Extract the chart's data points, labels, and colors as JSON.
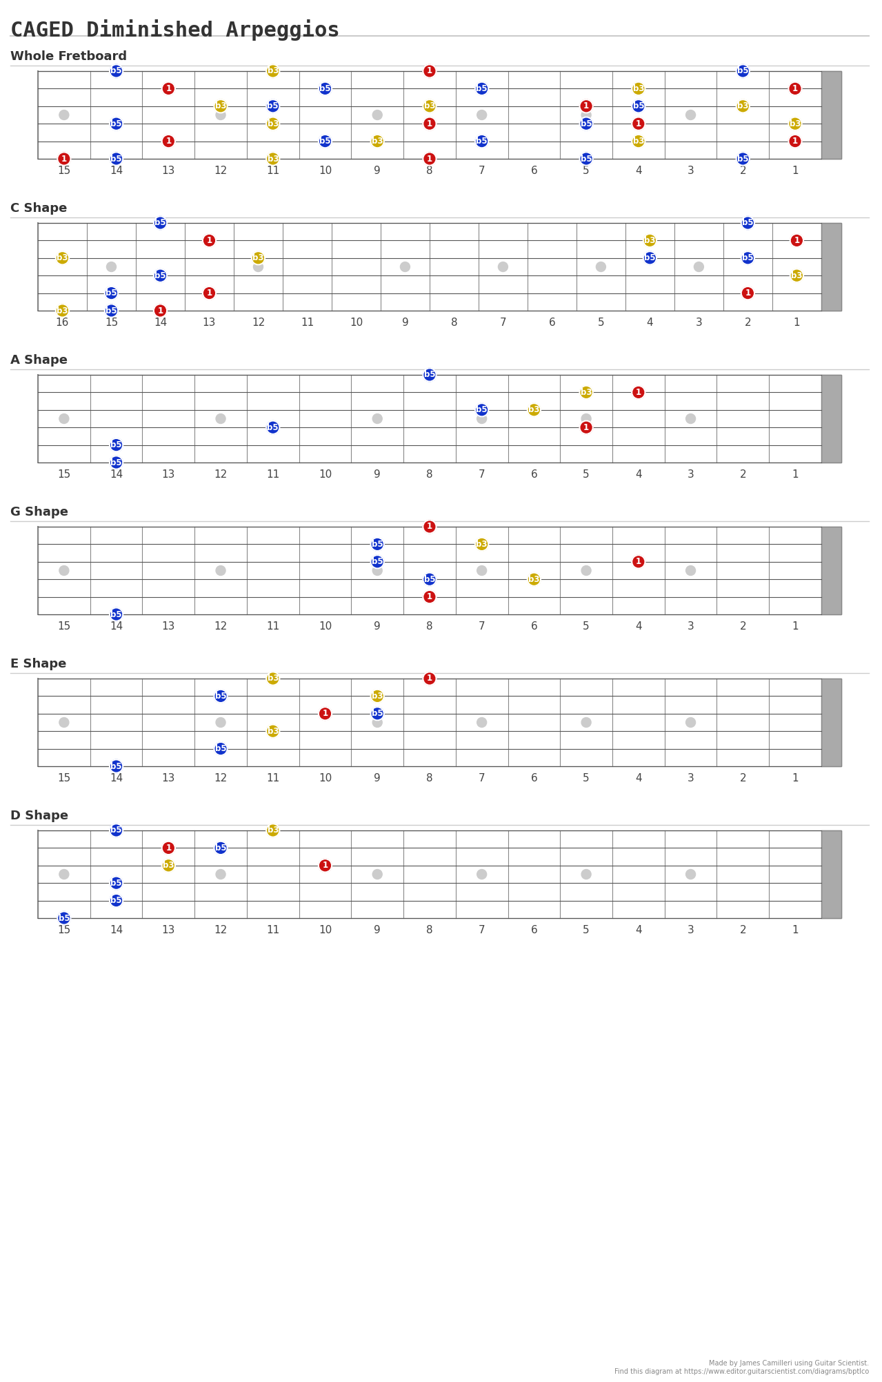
{
  "title": "CAGED Diminished Arpeggios",
  "title_font": "monospace",
  "title_fontsize": 22,
  "bg_color": "#ffffff",
  "section_label_fontsize": 13,
  "section_label_font": "sans-serif",
  "fret_label_fontsize": 11,
  "note_fontsize": 8.5,
  "colors": {
    "1": "#cc1111",
    "b3": "#ccaa00",
    "b5": "#1133cc",
    "b7": "#888888"
  },
  "note_text_color": "#ffffff",
  "string_count": 6,
  "diagrams": [
    {
      "label": "Whole Fretboard",
      "fret_min": 1,
      "fret_max": 15,
      "show_nut": false,
      "notes": [
        {
          "string": 1,
          "fret": 14,
          "interval": "b5"
        },
        {
          "string": 1,
          "fret": 11,
          "interval": "b3"
        },
        {
          "string": 1,
          "fret": 8,
          "interval": "1"
        },
        {
          "string": 1,
          "fret": 2,
          "interval": "b5"
        },
        {
          "string": 2,
          "fret": 13,
          "interval": "1"
        },
        {
          "string": 2,
          "fret": 10,
          "interval": "b5"
        },
        {
          "string": 2,
          "fret": 7,
          "interval": "b5"
        },
        {
          "string": 2,
          "fret": 4,
          "interval": "b3"
        },
        {
          "string": 2,
          "fret": 1,
          "interval": "1"
        },
        {
          "string": 3,
          "fret": 12,
          "interval": "b3"
        },
        {
          "string": 3,
          "fret": 11,
          "interval": "b5"
        },
        {
          "string": 3,
          "fret": 8,
          "interval": "b3"
        },
        {
          "string": 3,
          "fret": 5,
          "interval": "1"
        },
        {
          "string": 3,
          "fret": 4,
          "interval": "b5"
        },
        {
          "string": 3,
          "fret": 2,
          "interval": "b3"
        },
        {
          "string": 4,
          "fret": 14,
          "interval": "b5"
        },
        {
          "string": 4,
          "fret": 11,
          "interval": "b3"
        },
        {
          "string": 4,
          "fret": 8,
          "interval": "1"
        },
        {
          "string": 4,
          "fret": 5,
          "interval": "b5"
        },
        {
          "string": 4,
          "fret": 4,
          "interval": "1"
        },
        {
          "string": 4,
          "fret": 1,
          "interval": "b3"
        },
        {
          "string": 5,
          "fret": 13,
          "interval": "1"
        },
        {
          "string": 5,
          "fret": 10,
          "interval": "b5"
        },
        {
          "string": 5,
          "fret": 9,
          "interval": "b3"
        },
        {
          "string": 5,
          "fret": 7,
          "interval": "b5"
        },
        {
          "string": 5,
          "fret": 4,
          "interval": "b3"
        },
        {
          "string": 5,
          "fret": 1,
          "interval": "1"
        },
        {
          "string": 6,
          "fret": 15,
          "interval": "1"
        },
        {
          "string": 6,
          "fret": 14,
          "interval": "b5"
        },
        {
          "string": 6,
          "fret": 11,
          "interval": "b3"
        },
        {
          "string": 6,
          "fret": 8,
          "interval": "1"
        },
        {
          "string": 6,
          "fret": 5,
          "interval": "b5"
        },
        {
          "string": 6,
          "fret": 2,
          "interval": "b5"
        }
      ]
    },
    {
      "label": "C Shape",
      "fret_min": 1,
      "fret_max": 16,
      "show_nut": false,
      "notes": [
        {
          "string": 1,
          "fret": 14,
          "interval": "b5"
        },
        {
          "string": 1,
          "fret": 2,
          "interval": "b5"
        },
        {
          "string": 2,
          "fret": 13,
          "interval": "1"
        },
        {
          "string": 2,
          "fret": 4,
          "interval": "b3"
        },
        {
          "string": 2,
          "fret": 1,
          "interval": "1"
        },
        {
          "string": 3,
          "fret": 16,
          "interval": "b3"
        },
        {
          "string": 3,
          "fret": 12,
          "interval": "b3"
        },
        {
          "string": 3,
          "fret": 4,
          "interval": "b5"
        },
        {
          "string": 3,
          "fret": 2,
          "interval": "b5"
        },
        {
          "string": 4,
          "fret": 14,
          "interval": "b5"
        },
        {
          "string": 4,
          "fret": 1,
          "interval": "b3"
        },
        {
          "string": 5,
          "fret": 15,
          "interval": "b5"
        },
        {
          "string": 5,
          "fret": 13,
          "interval": "1"
        },
        {
          "string": 5,
          "fret": 2,
          "interval": "1"
        },
        {
          "string": 6,
          "fret": 16,
          "interval": "b3"
        },
        {
          "string": 6,
          "fret": 15,
          "interval": "b5"
        },
        {
          "string": 6,
          "fret": 14,
          "interval": "1"
        }
      ]
    },
    {
      "label": "A Shape",
      "fret_min": 1,
      "fret_max": 15,
      "show_nut": false,
      "notes": [
        {
          "string": 1,
          "fret": 8,
          "interval": "b5"
        },
        {
          "string": 2,
          "fret": 4,
          "interval": "1"
        },
        {
          "string": 2,
          "fret": 5,
          "interval": "b3"
        },
        {
          "string": 3,
          "fret": 6,
          "interval": "b3"
        },
        {
          "string": 3,
          "fret": 7,
          "interval": "b5"
        },
        {
          "string": 4,
          "fret": 11,
          "interval": "b5"
        },
        {
          "string": 4,
          "fret": 5,
          "interval": "1"
        },
        {
          "string": 5,
          "fret": 14,
          "interval": "b5"
        },
        {
          "string": 6,
          "fret": 14,
          "interval": "b5"
        }
      ]
    },
    {
      "label": "G Shape",
      "fret_min": 1,
      "fret_max": 15,
      "show_nut": false,
      "notes": [
        {
          "string": 1,
          "fret": 8,
          "interval": "1"
        },
        {
          "string": 2,
          "fret": 9,
          "interval": "b5"
        },
        {
          "string": 2,
          "fret": 7,
          "interval": "b3"
        },
        {
          "string": 3,
          "fret": 9,
          "interval": "b5"
        },
        {
          "string": 3,
          "fret": 4,
          "interval": "1"
        },
        {
          "string": 4,
          "fret": 8,
          "interval": "b5"
        },
        {
          "string": 4,
          "fret": 6,
          "interval": "b3"
        },
        {
          "string": 5,
          "fret": 8,
          "interval": "1"
        },
        {
          "string": 6,
          "fret": 14,
          "interval": "b5"
        }
      ]
    },
    {
      "label": "E Shape",
      "fret_min": 1,
      "fret_max": 15,
      "show_nut": false,
      "notes": [
        {
          "string": 1,
          "fret": 11,
          "interval": "b3"
        },
        {
          "string": 1,
          "fret": 8,
          "interval": "1"
        },
        {
          "string": 2,
          "fret": 12,
          "interval": "b5"
        },
        {
          "string": 2,
          "fret": 9,
          "interval": "b3"
        },
        {
          "string": 3,
          "fret": 10,
          "interval": "1"
        },
        {
          "string": 3,
          "fret": 9,
          "interval": "b5"
        },
        {
          "string": 4,
          "fret": 11,
          "interval": "b3"
        },
        {
          "string": 5,
          "fret": 12,
          "interval": "b5"
        },
        {
          "string": 6,
          "fret": 14,
          "interval": "b5"
        }
      ]
    },
    {
      "label": "D Shape",
      "fret_min": 1,
      "fret_max": 15,
      "show_nut": false,
      "notes": [
        {
          "string": 1,
          "fret": 14,
          "interval": "b5"
        },
        {
          "string": 1,
          "fret": 11,
          "interval": "b3"
        },
        {
          "string": 2,
          "fret": 13,
          "interval": "1"
        },
        {
          "string": 2,
          "fret": 12,
          "interval": "b5"
        },
        {
          "string": 3,
          "fret": 13,
          "interval": "b3"
        },
        {
          "string": 3,
          "fret": 10,
          "interval": "1"
        },
        {
          "string": 4,
          "fret": 14,
          "interval": "b5"
        },
        {
          "string": 5,
          "fret": 14,
          "interval": "b5"
        },
        {
          "string": 6,
          "fret": 15,
          "interval": "b5"
        }
      ]
    }
  ]
}
